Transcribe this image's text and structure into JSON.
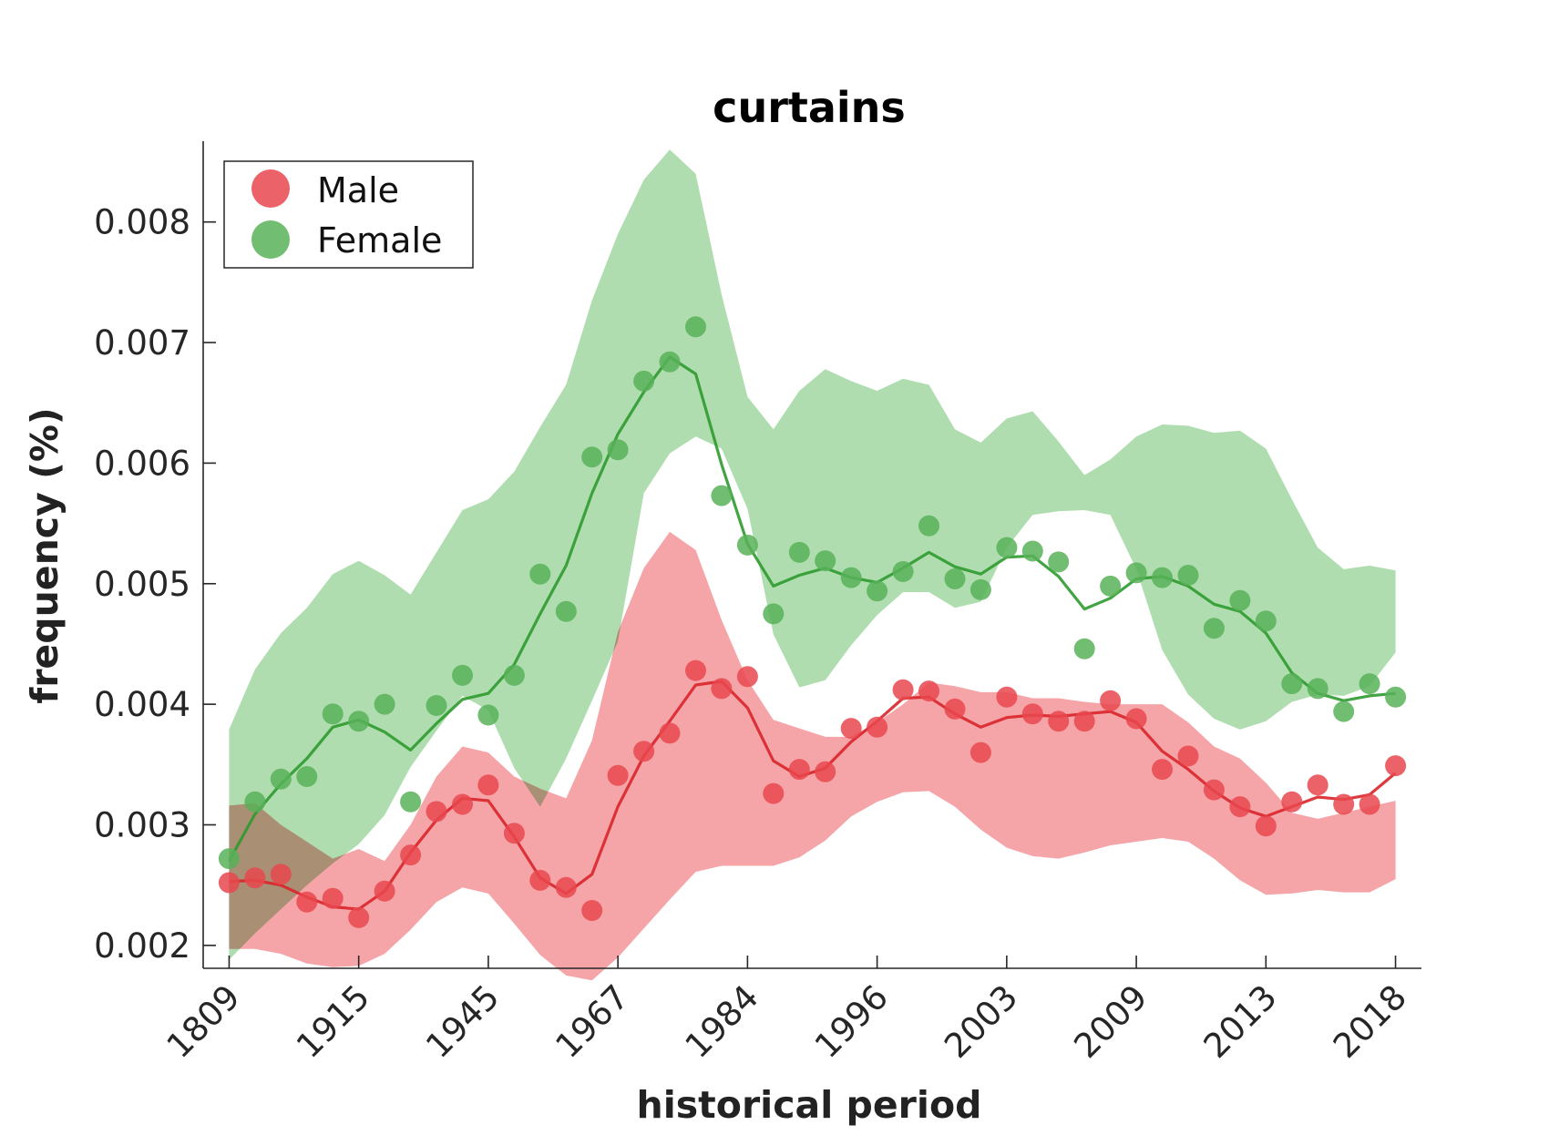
{
  "chart_data": {
    "type": "scatter",
    "title": "curtains",
    "xlabel": "historical period",
    "ylabel": "frequency (%)",
    "x_tick_labels": [
      "1809",
      "1915",
      "1945",
      "1967",
      "1984",
      "1996",
      "2003",
      "2009",
      "2013",
      "2018"
    ],
    "y_ticks": [
      0.002,
      0.003,
      0.004,
      0.005,
      0.006,
      0.007,
      0.008
    ],
    "y_tick_labels": [
      "0.002",
      "0.003",
      "0.004",
      "0.005",
      "0.006",
      "0.007",
      "0.008"
    ],
    "ylim": [
      0.00181,
      0.00867
    ],
    "xlim": [
      -1,
      46
    ],
    "grid": false,
    "legend": {
      "position": "top-left",
      "entries": [
        "Male",
        "Female"
      ]
    },
    "series": [
      {
        "name": "Male",
        "color": "#e8484e",
        "line_color": "#d9252a",
        "band_color": "#ef6d72",
        "points": [
          0.00252,
          0.00256,
          0.00259,
          0.00236,
          0.00239,
          0.00223,
          0.00245,
          0.00275,
          0.00311,
          0.00317,
          0.00333,
          0.00293,
          0.00254,
          0.00248,
          0.00229,
          0.00341,
          0.00361,
          0.00376,
          0.00428,
          0.00413,
          0.00423,
          0.00326,
          0.00346,
          0.00344,
          0.0038,
          0.00381,
          0.00412,
          0.00411,
          0.00396,
          0.0036,
          0.00406,
          0.00392,
          0.00386,
          0.00386,
          0.00403,
          0.00388,
          0.00346,
          0.00357,
          0.00329,
          0.00315,
          0.00299,
          0.00319,
          0.00333,
          0.00317,
          0.00317,
          0.00349
        ],
        "smooth": [
          0.00253,
          0.00254,
          0.0025,
          0.0024,
          0.00232,
          0.0023,
          0.00245,
          0.00277,
          0.00304,
          0.00322,
          0.0032,
          0.0029,
          0.00256,
          0.00243,
          0.00259,
          0.00315,
          0.00357,
          0.00386,
          0.00416,
          0.00419,
          0.00397,
          0.00353,
          0.0034,
          0.00347,
          0.00369,
          0.00386,
          0.00405,
          0.00406,
          0.00392,
          0.00381,
          0.00389,
          0.00391,
          0.0039,
          0.00392,
          0.00394,
          0.00385,
          0.00361,
          0.00346,
          0.00328,
          0.00314,
          0.00307,
          0.00315,
          0.00323,
          0.00321,
          0.00325,
          0.00343
        ],
        "upper": [
          0.00316,
          0.00318,
          0.003,
          0.00286,
          0.00272,
          0.0028,
          0.0027,
          0.003,
          0.0034,
          0.00365,
          0.0036,
          0.0034,
          0.0033,
          0.00322,
          0.0037,
          0.0046,
          0.00513,
          0.00543,
          0.00528,
          0.0047,
          0.0042,
          0.00387,
          0.0038,
          0.00373,
          0.00373,
          0.00385,
          0.004,
          0.00418,
          0.00415,
          0.0041,
          0.0041,
          0.00405,
          0.00405,
          0.00402,
          0.004,
          0.004,
          0.004,
          0.00385,
          0.00365,
          0.00355,
          0.00335,
          0.0031,
          0.00305,
          0.0031,
          0.00315,
          0.0032
        ],
        "lower": [
          0.00197,
          0.00197,
          0.00193,
          0.00185,
          0.00182,
          0.00183,
          0.00193,
          0.00213,
          0.00236,
          0.00248,
          0.00243,
          0.00218,
          0.00192,
          0.00175,
          0.00171,
          0.0019,
          0.00214,
          0.00238,
          0.00261,
          0.00266,
          0.00266,
          0.00266,
          0.00273,
          0.00287,
          0.00307,
          0.00319,
          0.00327,
          0.00328,
          0.00315,
          0.00296,
          0.00281,
          0.00274,
          0.00272,
          0.00277,
          0.00283,
          0.00286,
          0.00289,
          0.00286,
          0.00272,
          0.00254,
          0.00242,
          0.00243,
          0.00246,
          0.00244,
          0.00244,
          0.00255
        ]
      },
      {
        "name": "Female",
        "color": "#58b158",
        "line_color": "#2f9a2f",
        "band_color": "#7cc67b",
        "points": [
          0.00272,
          0.00319,
          0.00338,
          0.0034,
          0.00392,
          0.00386,
          0.004,
          0.00319,
          0.00399,
          0.00424,
          0.00391,
          0.00424,
          0.00508,
          0.00477,
          0.00605,
          0.00611,
          0.00668,
          0.00684,
          0.00713,
          0.00573,
          0.00532,
          0.00475,
          0.00526,
          0.00519,
          0.00505,
          0.00494,
          0.0051,
          0.00548,
          0.00504,
          0.00495,
          0.0053,
          0.00527,
          0.00518,
          0.00446,
          0.00498,
          0.00509,
          0.00505,
          0.00507,
          0.00463,
          0.00486,
          0.00469,
          0.00417,
          0.00413,
          0.00394,
          0.00417,
          0.00406
        ],
        "smooth": [
          0.0027,
          0.00309,
          0.00334,
          0.00355,
          0.00381,
          0.00387,
          0.00377,
          0.00362,
          0.00384,
          0.00404,
          0.00409,
          0.00433,
          0.00475,
          0.00515,
          0.00575,
          0.00624,
          0.00659,
          0.00688,
          0.00674,
          0.00599,
          0.00533,
          0.00498,
          0.00507,
          0.00513,
          0.00505,
          0.00501,
          0.00513,
          0.00526,
          0.00514,
          0.00508,
          0.00522,
          0.00523,
          0.00506,
          0.00479,
          0.00488,
          0.00504,
          0.00506,
          0.00498,
          0.00483,
          0.00477,
          0.00459,
          0.00426,
          0.00409,
          0.00403,
          0.00407,
          0.00409
        ],
        "upper": [
          0.00379,
          0.00429,
          0.00459,
          0.0048,
          0.00508,
          0.00519,
          0.00507,
          0.00491,
          0.00526,
          0.00561,
          0.0057,
          0.00593,
          0.0063,
          0.00665,
          0.00735,
          0.0079,
          0.00835,
          0.0086,
          0.0084,
          0.0074,
          0.00655,
          0.00628,
          0.0066,
          0.00678,
          0.00668,
          0.0066,
          0.0067,
          0.00665,
          0.00628,
          0.00617,
          0.00637,
          0.00643,
          0.00618,
          0.0059,
          0.00603,
          0.00622,
          0.00632,
          0.00631,
          0.00625,
          0.00627,
          0.00612,
          0.0057,
          0.0053,
          0.00512,
          0.00515,
          0.00511
        ],
        "lower": [
          0.00188,
          0.0021,
          0.0023,
          0.0025,
          0.00268,
          0.00284,
          0.00308,
          0.00348,
          0.00378,
          0.00407,
          0.00395,
          0.00347,
          0.00315,
          0.00355,
          0.00403,
          0.00452,
          0.00575,
          0.00608,
          0.00622,
          0.00612,
          0.00562,
          0.00458,
          0.00414,
          0.0042,
          0.00449,
          0.00474,
          0.00493,
          0.00493,
          0.0048,
          0.00485,
          0.0053,
          0.00557,
          0.0056,
          0.00561,
          0.00557,
          0.00512,
          0.00445,
          0.00408,
          0.00388,
          0.00379,
          0.00386,
          0.00402,
          0.00408,
          0.00407,
          0.00415,
          0.00443
        ]
      }
    ]
  }
}
